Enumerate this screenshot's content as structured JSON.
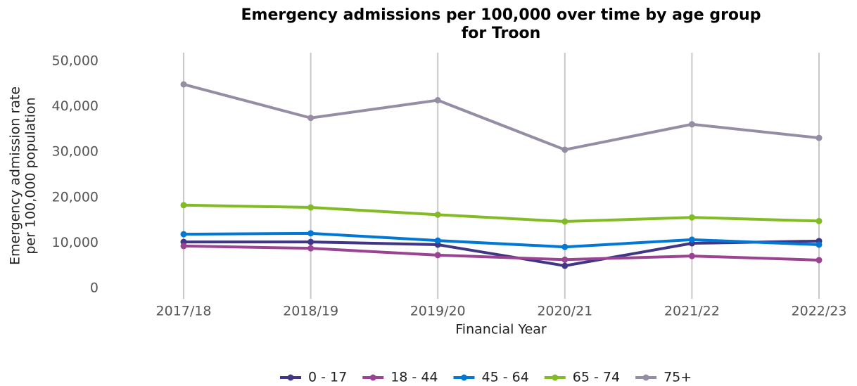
{
  "chart_data": {
    "type": "line",
    "title": [
      "Emergency admissions per 100,000 over time by age group",
      "for Troon"
    ],
    "x_label": "Financial Year",
    "y_label": [
      "Emergency admission rate",
      "per 100,000 population"
    ],
    "categories": [
      "2017/18",
      "2018/19",
      "2019/20",
      "2020/21",
      "2021/22",
      "2022/23"
    ],
    "series": [
      {
        "name": "0 - 17",
        "color": "#3f3685",
        "values": [
          10200,
          10200,
          9600,
          4950,
          9900,
          10400
        ]
      },
      {
        "name": "18 - 44",
        "color": "#9b4393",
        "values": [
          9300,
          8800,
          7300,
          6300,
          7100,
          6200
        ]
      },
      {
        "name": "45 - 64",
        "color": "#0078d4",
        "values": [
          11900,
          12100,
          10500,
          9100,
          10700,
          9600
        ]
      },
      {
        "name": "65 - 74",
        "color": "#83bb26",
        "values": [
          18300,
          17800,
          16200,
          14700,
          15600,
          14800
        ]
      },
      {
        "name": "75+",
        "color": "#948da3",
        "values": [
          44900,
          37500,
          41400,
          30500,
          36100,
          33100
        ]
      }
    ],
    "ylim": [
      0,
      50000
    ],
    "yticks": [
      0,
      {
        "value": 10000,
        "label": "10,000"
      },
      {
        "value": 20000,
        "label": "20,000"
      },
      {
        "value": 30000,
        "label": "30,000"
      },
      {
        "value": 40000,
        "label": "40,000"
      },
      {
        "value": 50000,
        "label": "50,000"
      }
    ],
    "grid": "x",
    "legend": "bottom"
  }
}
